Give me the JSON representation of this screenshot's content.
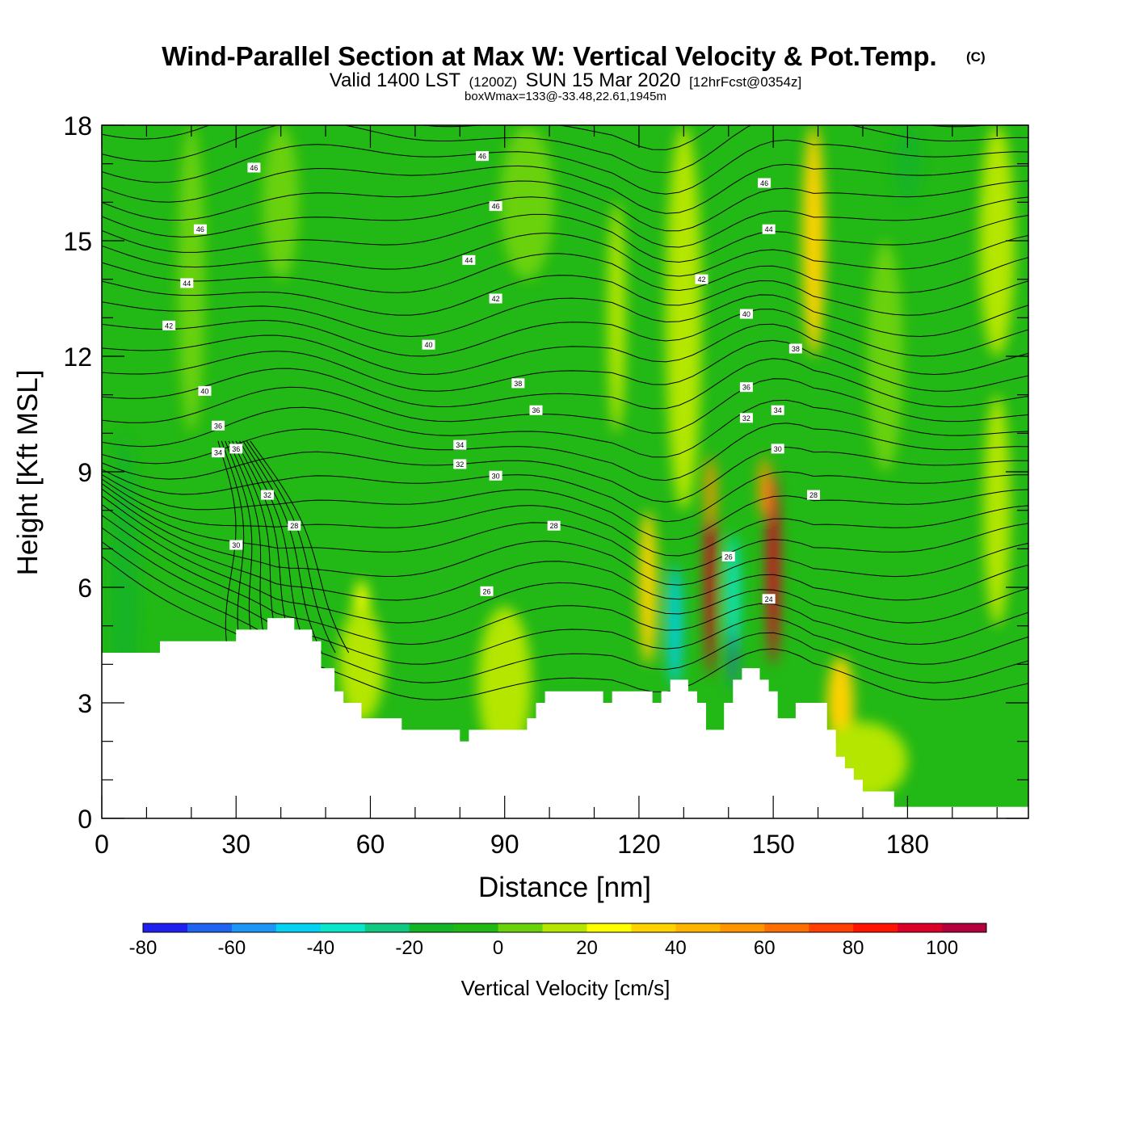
{
  "chart_data": {
    "type": "heatmap",
    "title": "Wind-Parallel Section at Max W: Vertical Velocity & Pot.Temp.",
    "title_mark": "(C)",
    "subtitle_main": "Valid 1400 LST",
    "subtitle_utc": "(1200Z)",
    "subtitle_date": "SUN 15 Mar 2020",
    "subtitle_forecast": "[12hrFcst@0354z]",
    "subtitle_box": "boxWmax=133@-33.48,22.61,1945m",
    "xlabel": "Distance [nm]",
    "ylabel": "Height [Kft MSL]",
    "xlim": [
      0,
      207
    ],
    "ylim": [
      0,
      18
    ],
    "x_ticks": [
      "0",
      "30",
      "60",
      "90",
      "120",
      "150",
      "180"
    ],
    "x_tick_values": [
      0,
      30,
      60,
      90,
      120,
      150,
      180
    ],
    "y_ticks": [
      "0",
      "3",
      "6",
      "9",
      "12",
      "15",
      "18"
    ],
    "y_tick_values": [
      0,
      3,
      6,
      9,
      12,
      15,
      18
    ],
    "colorbar": {
      "title": "Vertical Velocity [cm/s]",
      "min": -80,
      "max": 110,
      "step": 10,
      "tick_labels": [
        "-80",
        "-60",
        "-40",
        "-20",
        "0",
        "20",
        "40",
        "60",
        "80",
        "100"
      ],
      "tick_values": [
        -80,
        -60,
        -40,
        -20,
        0,
        20,
        40,
        60,
        80,
        100
      ],
      "colors": [
        "#1f1ff0",
        "#1f64f0",
        "#1e96f5",
        "#05d2f0",
        "#0ae6c8",
        "#0fc882",
        "#14b428",
        "#20b814",
        "#6ad20a",
        "#b4e600",
        "#ffff00",
        "#ffd200",
        "#ffb400",
        "#ff9600",
        "#ff6e00",
        "#ff4000",
        "#ff1400",
        "#dc0028",
        "#b4003c"
      ]
    },
    "terrain_kft": [
      [
        0,
        4.3
      ],
      [
        13,
        4.3
      ],
      [
        13,
        4.6
      ],
      [
        30,
        4.6
      ],
      [
        30,
        4.9
      ],
      [
        37,
        4.9
      ],
      [
        37,
        5.2
      ],
      [
        43,
        5.2
      ],
      [
        43,
        4.9
      ],
      [
        47,
        4.9
      ],
      [
        47,
        4.6
      ],
      [
        49,
        4.6
      ],
      [
        49,
        3.9
      ],
      [
        52,
        3.9
      ],
      [
        52,
        3.3
      ],
      [
        54,
        3.3
      ],
      [
        54,
        3.0
      ],
      [
        58,
        3.0
      ],
      [
        58,
        2.6
      ],
      [
        67,
        2.6
      ],
      [
        67,
        2.3
      ],
      [
        80,
        2.3
      ],
      [
        80,
        2.0
      ],
      [
        82,
        2.0
      ],
      [
        82,
        2.3
      ],
      [
        95,
        2.3
      ],
      [
        95,
        2.6
      ],
      [
        97,
        2.6
      ],
      [
        97,
        3.0
      ],
      [
        99,
        3.0
      ],
      [
        99,
        3.3
      ],
      [
        112,
        3.3
      ],
      [
        112,
        3.0
      ],
      [
        114,
        3.0
      ],
      [
        114,
        3.3
      ],
      [
        123,
        3.3
      ],
      [
        123,
        3.0
      ],
      [
        125,
        3.0
      ],
      [
        125,
        3.3
      ],
      [
        127,
        3.3
      ],
      [
        127,
        3.6
      ],
      [
        131,
        3.6
      ],
      [
        131,
        3.3
      ],
      [
        133,
        3.3
      ],
      [
        133,
        3.0
      ],
      [
        135,
        3.0
      ],
      [
        135,
        2.3
      ],
      [
        139,
        2.3
      ],
      [
        139,
        3.0
      ],
      [
        141,
        3.0
      ],
      [
        141,
        3.6
      ],
      [
        143,
        3.6
      ],
      [
        143,
        3.9
      ],
      [
        147,
        3.9
      ],
      [
        147,
        3.6
      ],
      [
        149,
        3.6
      ],
      [
        149,
        3.3
      ],
      [
        151,
        3.3
      ],
      [
        151,
        2.6
      ],
      [
        155,
        2.6
      ],
      [
        155,
        3.0
      ],
      [
        162,
        3.0
      ],
      [
        162,
        2.3
      ],
      [
        164,
        2.3
      ],
      [
        164,
        1.6
      ],
      [
        166,
        1.6
      ],
      [
        166,
        1.3
      ],
      [
        168,
        1.3
      ],
      [
        168,
        1.0
      ],
      [
        170,
        1.0
      ],
      [
        170,
        0.7
      ],
      [
        177,
        0.7
      ],
      [
        177,
        0.3
      ],
      [
        207,
        0.3
      ]
    ],
    "contour_labels": [
      {
        "x": 34,
        "y": 16.9,
        "text": "46"
      },
      {
        "x": 85,
        "y": 17.2,
        "text": "46"
      },
      {
        "x": 148,
        "y": 16.5,
        "text": "46"
      },
      {
        "x": 22,
        "y": 15.3,
        "text": "46"
      },
      {
        "x": 88,
        "y": 15.9,
        "text": "46"
      },
      {
        "x": 149,
        "y": 15.3,
        "text": "44"
      },
      {
        "x": 19,
        "y": 13.9,
        "text": "44"
      },
      {
        "x": 82,
        "y": 14.5,
        "text": "44"
      },
      {
        "x": 134,
        "y": 14.0,
        "text": "42"
      },
      {
        "x": 15,
        "y": 12.8,
        "text": "42"
      },
      {
        "x": 88,
        "y": 13.5,
        "text": "42"
      },
      {
        "x": 144,
        "y": 13.1,
        "text": "40"
      },
      {
        "x": 73,
        "y": 12.3,
        "text": "40"
      },
      {
        "x": 155,
        "y": 12.2,
        "text": "38"
      },
      {
        "x": 23,
        "y": 11.1,
        "text": "40"
      },
      {
        "x": 93,
        "y": 11.3,
        "text": "38"
      },
      {
        "x": 144,
        "y": 11.2,
        "text": "36"
      },
      {
        "x": 97,
        "y": 10.6,
        "text": "36"
      },
      {
        "x": 26,
        "y": 10.2,
        "text": "36"
      },
      {
        "x": 151,
        "y": 10.6,
        "text": "34"
      },
      {
        "x": 144,
        "y": 10.4,
        "text": "32"
      },
      {
        "x": 30,
        "y": 9.6,
        "text": "36"
      },
      {
        "x": 26,
        "y": 9.5,
        "text": "34"
      },
      {
        "x": 80,
        "y": 9.7,
        "text": "34"
      },
      {
        "x": 80,
        "y": 9.2,
        "text": "32"
      },
      {
        "x": 88,
        "y": 8.9,
        "text": "30"
      },
      {
        "x": 151,
        "y": 9.6,
        "text": "30"
      },
      {
        "x": 37,
        "y": 8.4,
        "text": "32"
      },
      {
        "x": 159,
        "y": 8.4,
        "text": "28"
      },
      {
        "x": 43,
        "y": 7.6,
        "text": "28"
      },
      {
        "x": 101,
        "y": 7.6,
        "text": "28"
      },
      {
        "x": 30,
        "y": 7.1,
        "text": "30"
      },
      {
        "x": 140,
        "y": 6.8,
        "text": "26"
      },
      {
        "x": 86,
        "y": 5.9,
        "text": "26"
      },
      {
        "x": 149,
        "y": 5.7,
        "text": "24"
      }
    ]
  }
}
